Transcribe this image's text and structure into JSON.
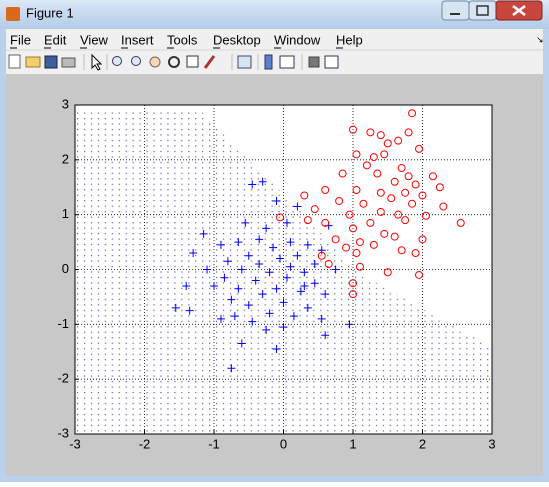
{
  "window": {
    "title": "Figure 1",
    "menu": [
      "File",
      "Edit",
      "View",
      "Insert",
      "Tools",
      "Desktop",
      "Window",
      "Help"
    ]
  },
  "chart_data": {
    "type": "scatter",
    "xlim": [
      -3,
      3
    ],
    "ylim": [
      -3,
      3
    ],
    "xticks": [
      -3,
      -2,
      -1,
      0,
      1,
      2,
      3
    ],
    "yticks": [
      -3,
      -2,
      -1,
      0,
      1,
      2,
      3
    ],
    "grid": true,
    "region": {
      "color": "#5a5ab4",
      "x": [
        -3,
        -1.2,
        -0.5,
        0.3,
        1,
        1.7,
        2.4,
        3,
        3,
        -3
      ],
      "y": [
        2.9,
        2.9,
        2,
        1,
        0,
        -0.5,
        -1,
        -1.4,
        -3,
        -3
      ]
    },
    "series": [
      {
        "marker": "+",
        "color": "#0000ff",
        "x": [
          -0.3,
          -0.45,
          -0.1,
          0.2,
          -0.55,
          0.05,
          -0.25,
          0.65,
          -1.15,
          -0.35,
          0.1,
          -0.65,
          0.35,
          -0.9,
          -0.15,
          -1.3,
          0.55,
          -0.5,
          0.2,
          -0.05,
          -0.8,
          0.45,
          -0.35,
          0.1,
          -1.1,
          -0.6,
          0.3,
          -0.2,
          0.75,
          -0.85,
          0.05,
          -0.4,
          0.45,
          -1.0,
          -0.65,
          -0.1,
          0.25,
          -1.4,
          -0.3,
          0.6,
          -0.75,
          0.0,
          -0.5,
          0.35,
          -1.55,
          -1.35,
          -0.2,
          -0.7,
          0.15,
          0.55,
          -0.45,
          0.0,
          0.95,
          -0.25,
          0.6,
          -0.6,
          -0.1,
          -0.75,
          0.3,
          -0.9
        ],
        "values": [
          1.6,
          1.55,
          1.25,
          1.15,
          0.85,
          0.85,
          0.75,
          0.8,
          0.65,
          0.55,
          0.5,
          0.5,
          0.45,
          0.45,
          0.4,
          0.3,
          0.35,
          0.25,
          0.25,
          0.2,
          0.15,
          0.1,
          0.1,
          0.05,
          0.0,
          0.0,
          -0.05,
          -0.05,
          0.0,
          -0.15,
          -0.15,
          -0.2,
          -0.25,
          -0.3,
          -0.35,
          -0.35,
          -0.4,
          -0.3,
          -0.45,
          -0.45,
          -0.55,
          -0.6,
          -0.65,
          -0.7,
          -0.7,
          -0.75,
          -0.8,
          -0.85,
          -0.85,
          -0.9,
          -0.95,
          -1.05,
          -1.0,
          -1.1,
          -1.2,
          -1.35,
          -1.45,
          -1.8,
          -0.3,
          -0.9
        ]
      },
      {
        "marker": "o",
        "color": "#ff0000",
        "x": [
          1.85,
          1.0,
          1.8,
          1.25,
          1.4,
          1.65,
          1.5,
          1.95,
          1.05,
          1.3,
          1.45,
          1.2,
          1.7,
          1.35,
          0.85,
          1.8,
          2.15,
          1.6,
          1.9,
          2.25,
          0.6,
          1.05,
          1.4,
          1.75,
          2.0,
          0.3,
          1.55,
          0.8,
          1.15,
          1.85,
          2.3,
          0.45,
          1.4,
          1.65,
          0.95,
          2.05,
          2.55,
          0.35,
          1.75,
          1.25,
          0.6,
          1.0,
          1.45,
          1.6,
          2.0,
          0.75,
          1.1,
          1.3,
          0.9,
          1.05,
          1.7,
          1.9,
          1.5,
          1.95,
          1.0,
          1.0,
          0.65,
          -0.05,
          0.55,
          1.1
        ],
        "values": [
          2.85,
          2.55,
          2.5,
          2.5,
          2.45,
          2.35,
          2.3,
          2.2,
          2.1,
          2.05,
          2.1,
          1.9,
          1.85,
          1.75,
          1.75,
          1.7,
          1.7,
          1.6,
          1.55,
          1.5,
          1.45,
          1.45,
          1.4,
          1.4,
          1.35,
          1.35,
          1.3,
          1.25,
          1.2,
          1.2,
          1.15,
          1.1,
          1.05,
          1.0,
          1.0,
          0.98,
          0.85,
          0.9,
          0.9,
          0.85,
          0.85,
          0.75,
          0.65,
          0.6,
          0.55,
          0.55,
          0.5,
          0.45,
          0.4,
          0.3,
          0.35,
          0.3,
          -0.05,
          -0.1,
          -0.25,
          -0.45,
          0.1,
          0.95,
          0.25,
          0.05
        ]
      }
    ]
  }
}
